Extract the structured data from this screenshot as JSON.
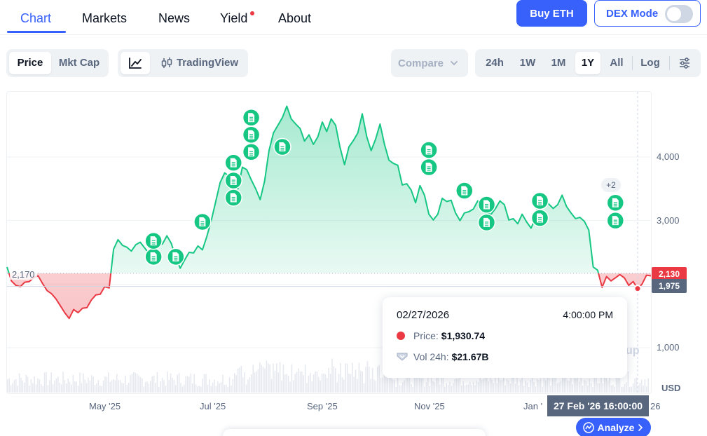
{
  "nav": {
    "tabs": [
      {
        "label": "Chart",
        "active": true
      },
      {
        "label": "Markets"
      },
      {
        "label": "News"
      },
      {
        "label": "Yield",
        "badge_dot": true
      },
      {
        "label": "About"
      }
    ],
    "buy_label": "Buy ETH",
    "dex_label": "DEX Mode",
    "dex_enabled": false
  },
  "toolbar": {
    "metric_tabs": [
      "Price",
      "Mkt Cap"
    ],
    "metric_selected": "Price",
    "chart_style_icon": "line-chart-icon",
    "tradingview_label": "TradingView",
    "tradingview_icon": "candlestick-icon",
    "compare_label": "Compare",
    "ranges": [
      "24h",
      "1W",
      "1M",
      "1Y",
      "All"
    ],
    "range_selected": "1Y",
    "log_label": "Log",
    "settings_icon": "sliders-icon"
  },
  "colors": {
    "accent": "#3861fb",
    "up": "#16c784",
    "down": "#ea3943",
    "muted": "#58667e"
  },
  "chart_data": {
    "type": "area",
    "currency_label": "USD",
    "baseline": 2170,
    "baseline_label": "2,170",
    "y_ticks": [
      1000,
      2000,
      3000,
      4000
    ],
    "y_tick_labels": [
      "1,000",
      "",
      "3,000",
      "4,000"
    ],
    "ylim": [
      0,
      4750
    ],
    "x_ticks": [
      "May '25",
      "Jul '25",
      "Sep '25",
      "Nov '25",
      "Jan '26"
    ],
    "x_tick_visible": [
      "May '25",
      "Jul '25",
      "Sep '25",
      "Nov '25",
      "Jan '"
    ],
    "series": [
      {
        "values": [
          [
            0,
            2270
          ],
          [
            1,
            2050
          ],
          [
            2,
            1980
          ],
          [
            3,
            1960
          ],
          [
            4,
            2030
          ],
          [
            5,
            2040
          ],
          [
            6,
            2100
          ],
          [
            7,
            2130
          ],
          [
            8,
            2010
          ],
          [
            9,
            1900
          ],
          [
            10,
            1850
          ],
          [
            11,
            1770
          ],
          [
            12,
            1660
          ],
          [
            13,
            1550
          ],
          [
            14,
            1460
          ],
          [
            15,
            1600
          ],
          [
            16,
            1550
          ],
          [
            17,
            1620
          ],
          [
            18,
            1630
          ],
          [
            19,
            1750
          ],
          [
            20,
            1830
          ],
          [
            21,
            1840
          ],
          [
            22,
            1960
          ],
          [
            23,
            1940
          ],
          [
            24,
            2550
          ],
          [
            25,
            2700
          ],
          [
            26,
            2610
          ],
          [
            27,
            2580
          ],
          [
            28,
            2520
          ],
          [
            29,
            2620
          ],
          [
            30,
            2660
          ],
          [
            31,
            2570
          ],
          [
            32,
            2480
          ],
          [
            33,
            2560
          ],
          [
            34,
            2620
          ],
          [
            35,
            2630
          ],
          [
            36,
            2760
          ],
          [
            37,
            2640
          ],
          [
            38,
            2420
          ],
          [
            39,
            2250
          ],
          [
            40,
            2380
          ],
          [
            41,
            2500
          ],
          [
            42,
            2490
          ],
          [
            43,
            2600
          ],
          [
            44,
            2540
          ],
          [
            45,
            2750
          ],
          [
            46,
            3000
          ],
          [
            47,
            3300
          ],
          [
            48,
            3600
          ],
          [
            49,
            3750
          ],
          [
            50,
            3700
          ],
          [
            51,
            3550
          ],
          [
            52,
            3500
          ],
          [
            53,
            3840
          ],
          [
            54,
            3800
          ],
          [
            55,
            3640
          ],
          [
            56,
            3500
          ],
          [
            57,
            3330
          ],
          [
            58,
            3620
          ],
          [
            59,
            4100
          ],
          [
            60,
            4380
          ],
          [
            61,
            4500
          ],
          [
            62,
            4620
          ],
          [
            63,
            4800
          ],
          [
            64,
            4600
          ],
          [
            65,
            4520
          ],
          [
            66,
            4450
          ],
          [
            67,
            4250
          ],
          [
            68,
            4350
          ],
          [
            69,
            4200
          ],
          [
            70,
            4320
          ],
          [
            71,
            4550
          ],
          [
            72,
            4400
          ],
          [
            73,
            4600
          ],
          [
            74,
            4500
          ],
          [
            75,
            4150
          ],
          [
            76,
            3880
          ],
          [
            77,
            4160
          ],
          [
            78,
            4260
          ],
          [
            79,
            4380
          ],
          [
            80,
            4680
          ],
          [
            81,
            4320
          ],
          [
            82,
            4100
          ],
          [
            83,
            4280
          ],
          [
            84,
            4520
          ],
          [
            85,
            4200
          ],
          [
            86,
            3950
          ],
          [
            87,
            3900
          ],
          [
            88,
            3870
          ],
          [
            89,
            3560
          ],
          [
            90,
            3580
          ],
          [
            91,
            3480
          ],
          [
            92,
            3280
          ],
          [
            93,
            3550
          ],
          [
            94,
            3400
          ],
          [
            95,
            3100
          ],
          [
            96,
            3010
          ],
          [
            97,
            3100
          ],
          [
            98,
            3350
          ],
          [
            99,
            3300
          ],
          [
            100,
            3320
          ],
          [
            101,
            3120
          ],
          [
            102,
            3000
          ],
          [
            103,
            3120
          ],
          [
            104,
            3140
          ],
          [
            105,
            3180
          ],
          [
            106,
            3310
          ],
          [
            107,
            3150
          ],
          [
            108,
            3110
          ],
          [
            109,
            3100
          ],
          [
            110,
            3190
          ],
          [
            111,
            3310
          ],
          [
            112,
            3250
          ],
          [
            113,
            3010
          ],
          [
            114,
            3030
          ],
          [
            115,
            2950
          ],
          [
            116,
            3100
          ],
          [
            117,
            2980
          ],
          [
            118,
            2880
          ],
          [
            119,
            3040
          ],
          [
            120,
            3440
          ],
          [
            121,
            3350
          ],
          [
            122,
            3260
          ],
          [
            123,
            3190
          ],
          [
            124,
            3250
          ],
          [
            125,
            3400
          ],
          [
            126,
            3220
          ],
          [
            127,
            3120
          ],
          [
            128,
            3030
          ],
          [
            129,
            3050
          ],
          [
            130,
            2990
          ],
          [
            131,
            2850
          ],
          [
            132,
            2270
          ],
          [
            133,
            2220
          ],
          [
            134,
            1950
          ],
          [
            135,
            2120
          ],
          [
            136,
            2050
          ],
          [
            137,
            2100
          ],
          [
            138,
            2150
          ],
          [
            139,
            2100
          ],
          [
            140,
            1980
          ],
          [
            141,
            2040
          ],
          [
            142,
            1930
          ],
          [
            143,
            2000
          ],
          [
            144,
            2140
          ],
          [
            145,
            2130
          ]
        ]
      }
    ],
    "last_price_label": "2,130",
    "crosshair_price_label": "1,975",
    "crosshair_time_label": "27 Feb '26 16:00:00",
    "crosshair_index": 142
  },
  "news_markers": [
    {
      "i": 33,
      "v": 2430
    },
    {
      "i": 33,
      "v": 2680
    },
    {
      "i": 38,
      "v": 2430
    },
    {
      "i": 44,
      "v": 2980
    },
    {
      "i": 51,
      "v": 3360
    },
    {
      "i": 51,
      "v": 3630
    },
    {
      "i": 51,
      "v": 3910
    },
    {
      "i": 55,
      "v": 4080
    },
    {
      "i": 55,
      "v": 4350
    },
    {
      "i": 55,
      "v": 4620
    },
    {
      "i": 62,
      "v": 4160
    },
    {
      "i": 95,
      "v": 3840
    },
    {
      "i": 95,
      "v": 4110
    },
    {
      "i": 103,
      "v": 3470
    },
    {
      "i": 108,
      "v": 2970
    },
    {
      "i": 108,
      "v": 3250
    },
    {
      "i": 120,
      "v": 3040
    },
    {
      "i": 120,
      "v": 3310
    },
    {
      "i": 137,
      "v": 3000
    },
    {
      "i": 137,
      "v": 3280
    }
  ],
  "news_more_label": "+2",
  "tooltip": {
    "date": "02/27/2026",
    "time": "4:00:00 PM",
    "price_label": "Price:",
    "price_value": "$1,930.74",
    "vol_label": "Vol 24h:",
    "vol_value": "$21.67B"
  },
  "analyze_label": "Analyze",
  "watermark": "up"
}
